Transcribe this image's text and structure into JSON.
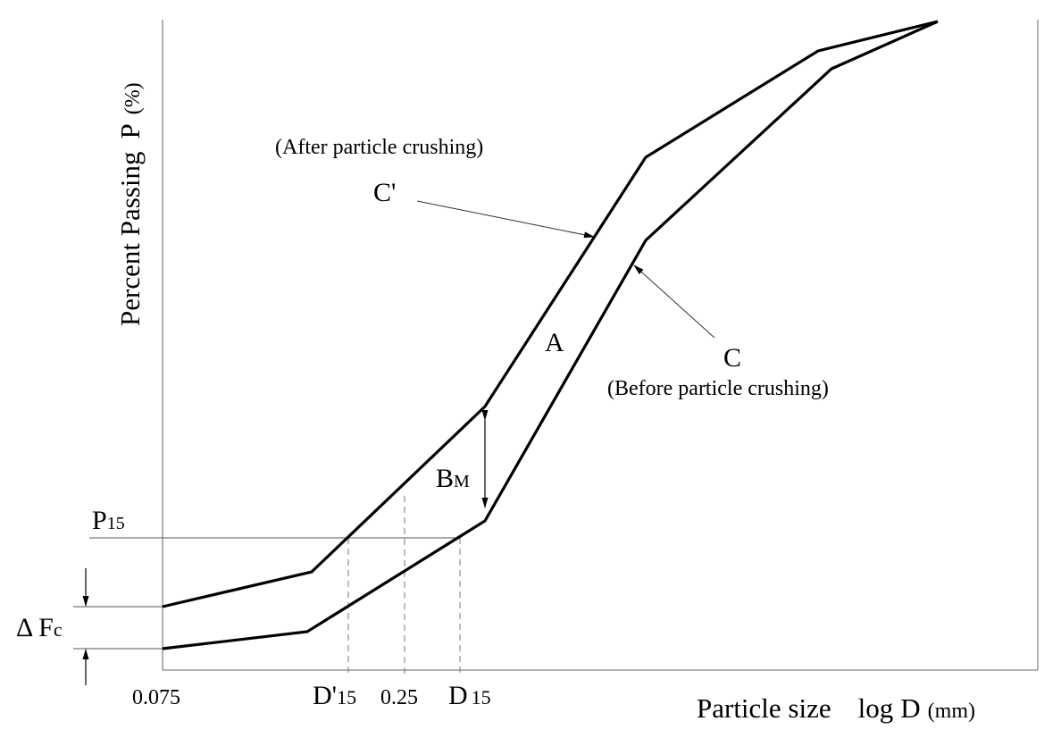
{
  "axes": {
    "ylabel": "Percent Passing",
    "ylabel_symbol": "P",
    "ylabel_unit": "(%)",
    "xlabel": "Particle size",
    "xlabel_log": "log",
    "xlabel_symbol": "D",
    "xlabel_unit": "(mm)"
  },
  "x_ticks": {
    "t0075": "0.075",
    "d15prime_main": "D'",
    "d15prime_sub": "15",
    "t025": "0.25",
    "d15_main": "D",
    "d15_sub": "15"
  },
  "labels": {
    "after_crushing": "(After particle crushing)",
    "c_prime": "C'",
    "c": "C",
    "before_crushing": "(Before particle crushing)",
    "area": "A",
    "bm_main": "B",
    "bm_sub": "M",
    "p15_main": "P",
    "p15_sub": "15",
    "delta_fc_main": "Δ F",
    "delta_fc_sub": "c"
  },
  "colors": {
    "curve": "#000000",
    "thin_line": "#555555",
    "dashed_line": "#777777"
  }
}
